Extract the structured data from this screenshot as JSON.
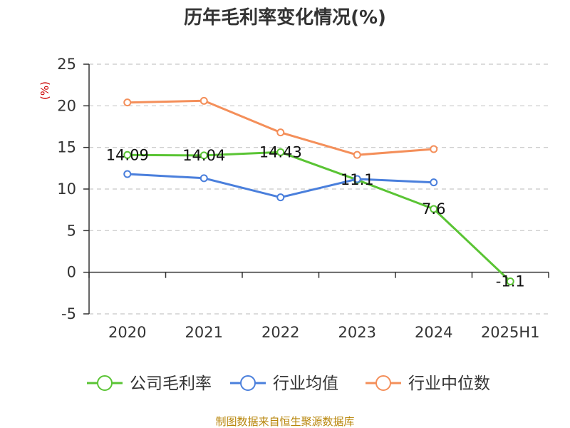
{
  "chart_data": {
    "type": "line",
    "title": "历年毛利率变化情况(%)",
    "unit_label": "(%)",
    "categories": [
      "2020",
      "2021",
      "2022",
      "2023",
      "2024",
      "2025H1"
    ],
    "ylim": [
      -5,
      25
    ],
    "yticks": [
      "25",
      "20",
      "15",
      "10",
      "5",
      "0",
      "-5"
    ],
    "grid": true,
    "legend_position": "bottom",
    "series": [
      {
        "name": "公司毛利率",
        "color": "#5ac434",
        "values": [
          14.09,
          14.04,
          14.43,
          11.1,
          7.6,
          -1.1
        ],
        "labels": [
          "14.09",
          "14.04",
          "14.43",
          "11.1",
          "7.6",
          "-1.1"
        ]
      },
      {
        "name": "行业均值",
        "color": "#4a7fdc",
        "values": [
          11.8,
          11.3,
          9.0,
          11.2,
          10.8,
          null
        ]
      },
      {
        "name": "行业中位数",
        "color": "#f48f5a",
        "values": [
          20.4,
          20.6,
          16.8,
          14.1,
          14.8,
          null
        ]
      }
    ]
  },
  "source_text": "制图数据来自恒生聚源数据库"
}
